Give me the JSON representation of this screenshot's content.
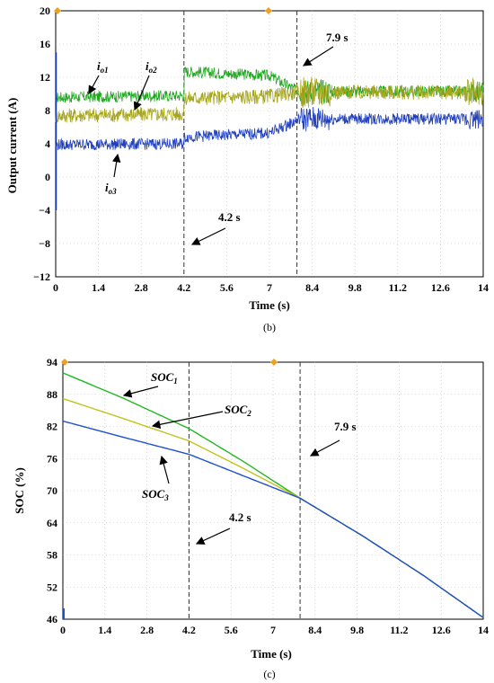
{
  "chart_data": [
    {
      "type": "line",
      "caption": "(b)",
      "xlabel": "Time (s)",
      "ylabel": "Output current (A)",
      "xlim": [
        0,
        14
      ],
      "ylim": [
        -12,
        20
      ],
      "xticks": [
        "0",
        "1.4",
        "2.8",
        "4.2",
        "5.6",
        "7",
        "8.4",
        "9.8",
        "11.2",
        "12.6",
        "14"
      ],
      "yticks": [
        "20",
        "16",
        "12",
        "8",
        "4",
        "0",
        "−4",
        "−8",
        "−12"
      ],
      "grid": true,
      "vlines": [
        4.2,
        7.9
      ],
      "colors": {
        "io1": "#1fa81f",
        "io2": "#a6a61c",
        "io3": "#1f3fbf"
      },
      "series": [
        {
          "name_main": "i",
          "name_sub": "o1",
          "x": [
            0,
            0.1,
            4.2,
            4.21,
            7,
            7.9,
            8.0,
            14
          ],
          "y": [
            9.5,
            9.6,
            9.8,
            12.7,
            12.2,
            10.4,
            10.3,
            10.3
          ]
        },
        {
          "name_main": "i",
          "name_sub": "o2",
          "x": [
            0,
            0.1,
            4.2,
            4.21,
            7,
            7.9,
            8.0,
            14
          ],
          "y": [
            7.3,
            7.4,
            7.6,
            9.5,
            9.7,
            10.2,
            10.2,
            10.2
          ]
        },
        {
          "name_main": "i",
          "name_sub": "o3",
          "x": [
            0,
            0.1,
            4.2,
            4.21,
            7,
            7.9,
            8.0,
            14
          ],
          "y": [
            3.8,
            3.9,
            4.0,
            4.8,
            5.3,
            6.8,
            7.0,
            7.0
          ]
        }
      ],
      "annotations": {
        "t1": "4.2 s",
        "t2": "7.9 s"
      }
    },
    {
      "type": "line",
      "caption": "(c)",
      "xlabel": "Time (s)",
      "ylabel": "SOC (%)",
      "xlim": [
        0,
        14
      ],
      "ylim": [
        46,
        94
      ],
      "xticks": [
        "0",
        "1.4",
        "2.8",
        "4.2",
        "5.6",
        "7",
        "8.4",
        "9.8",
        "11.2",
        "12.6",
        "14"
      ],
      "yticks": [
        "94",
        "88",
        "82",
        "76",
        "70",
        "64",
        "58",
        "52",
        "46"
      ],
      "grid": true,
      "vlines": [
        4.2,
        7.9
      ],
      "colors": {
        "soc1": "#1fb81f",
        "soc2": "#c2c21c",
        "soc3": "#1f4fcf"
      },
      "series": [
        {
          "name_main": "SOC",
          "name_sub": "1",
          "x": [
            0,
            2,
            4.2,
            6,
            7.9,
            10,
            12,
            14
          ],
          "y": [
            92,
            87.3,
            81.6,
            75.5,
            68.6,
            61.5,
            54.2,
            46.3
          ]
        },
        {
          "name_main": "SOC",
          "name_sub": "2",
          "x": [
            0,
            2,
            4.2,
            6,
            7.9,
            10,
            12,
            14
          ],
          "y": [
            87.2,
            83.5,
            79.3,
            74.2,
            68.6,
            61.5,
            54.2,
            46.3
          ]
        },
        {
          "name_main": "SOC",
          "name_sub": "3",
          "x": [
            0,
            2,
            4.2,
            6,
            7.9,
            10,
            12,
            14
          ],
          "y": [
            83,
            80,
            76.8,
            72.8,
            68.6,
            61.5,
            54.2,
            46.3
          ]
        }
      ],
      "annotations": {
        "t1": "4.2 s",
        "t2": "7.9 s"
      }
    }
  ]
}
